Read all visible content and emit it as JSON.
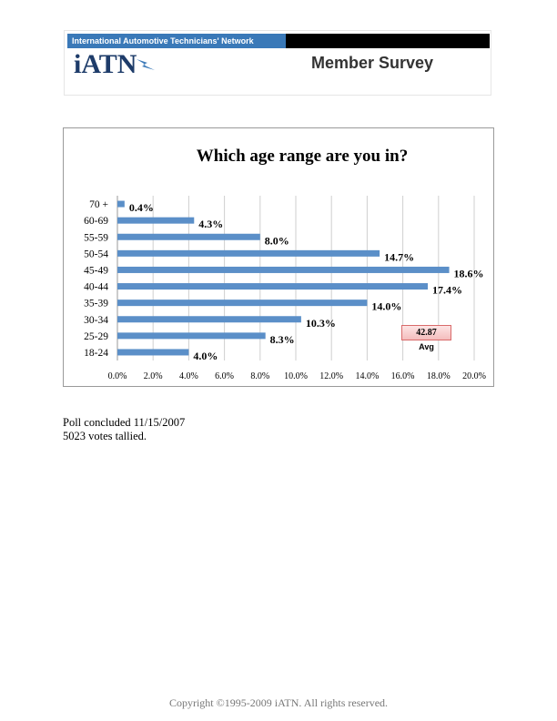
{
  "header": {
    "network_name": "International Automotive Technicians' Network",
    "logo_text": "iATN",
    "survey_title": "Member Survey",
    "logo_color": "#1e3c6a",
    "bar_color": "#3a79b8"
  },
  "chart_data": {
    "type": "bar",
    "orientation": "horizontal",
    "title": "Which age range are you in?",
    "categories": [
      "70 +",
      "60-69",
      "55-59",
      "50-54",
      "45-49",
      "40-44",
      "35-39",
      "30-34",
      "25-29",
      "18-24"
    ],
    "values": [
      0.4,
      4.3,
      8.0,
      14.7,
      18.6,
      17.4,
      14.0,
      10.3,
      8.3,
      4.0
    ],
    "value_labels": [
      "0.4%",
      "4.3%",
      "8.0%",
      "14.7%",
      "18.6%",
      "17.4%",
      "14.0%",
      "10.3%",
      "8.3%",
      "4.0%"
    ],
    "xlim": [
      0,
      20
    ],
    "x_ticks": [
      "0.0%",
      "2.0%",
      "4.0%",
      "6.0%",
      "8.0%",
      "10.0%",
      "12.0%",
      "14.0%",
      "16.0%",
      "18.0%",
      "20.0%"
    ],
    "grid": true,
    "bar_color": "#5b8fc8",
    "annotation": {
      "value": "42.87",
      "label": "Avg"
    }
  },
  "poll": {
    "concluded": "Poll concluded 11/15/2007",
    "votes": "5023 votes tallied."
  },
  "footer": {
    "copyright": "Copyright ©1995-2009 iATN. All rights reserved."
  }
}
